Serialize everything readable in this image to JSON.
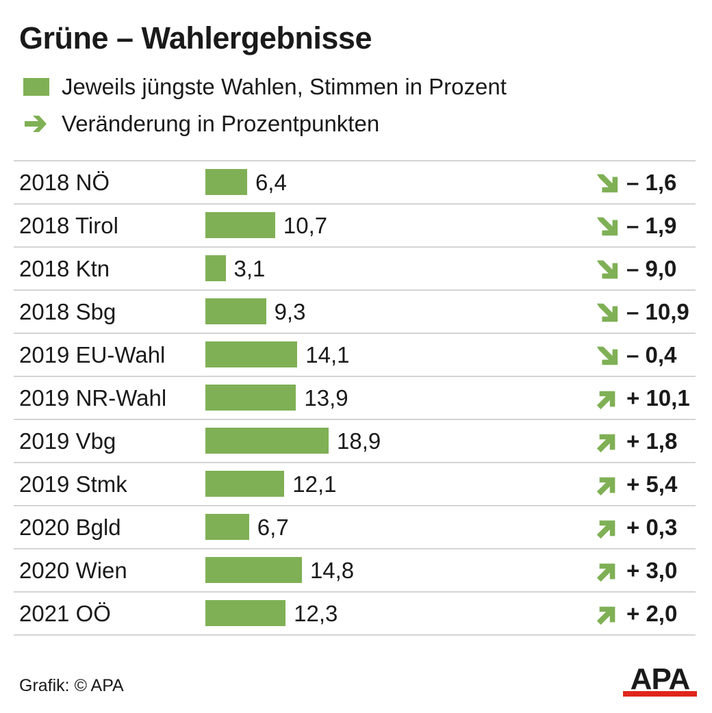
{
  "title": "Grüne – Wahlergebnisse",
  "legend": {
    "bars": "Jeweils jüngste Wahlen, Stimmen in Prozent",
    "arrows": "Veränderung in Prozentpunkten"
  },
  "colors": {
    "bar": "#7fb055",
    "arrow": "#7fb055",
    "logo_text": "#1a1a1a",
    "logo_bar": "#e0261b"
  },
  "icons": {
    "down": "arrow-down-right-icon",
    "up": "arrow-up-right-icon"
  },
  "chart_data": {
    "type": "bar",
    "orientation": "horizontal",
    "categories": [
      "2018 NÖ",
      "2018 Tirol",
      "2018 Ktn",
      "2018 Sbg",
      "2019 EU-Wahl",
      "2019 NR-Wahl",
      "2019 Vbg",
      "2019 Stmk",
      "2020 Bgld",
      "2020 Wien",
      "2021 OÖ"
    ],
    "values": [
      6.4,
      10.7,
      3.1,
      9.3,
      14.1,
      13.9,
      18.9,
      12.1,
      6.7,
      14.8,
      12.3
    ],
    "value_labels": [
      "6,4",
      "10,7",
      "3,1",
      "9,3",
      "14,1",
      "13,9",
      "18,9",
      "12,1",
      "6,7",
      "14,8",
      "12,3"
    ],
    "changes": [
      -1.6,
      -1.9,
      -9.0,
      -10.9,
      -0.4,
      10.1,
      1.8,
      5.4,
      0.3,
      3.0,
      2.0
    ],
    "change_labels": [
      "– 1,6",
      "– 1,9",
      "– 9,0",
      "– 10,9",
      "– 0,4",
      "+ 10,1",
      "+ 1,8",
      "+ 5,4",
      "+ 0,3",
      "+ 3,0",
      "+ 2,0"
    ],
    "xlim": [
      0,
      18.9
    ],
    "grid": false
  },
  "source": "Grafik: © APA",
  "logo": "APA"
}
